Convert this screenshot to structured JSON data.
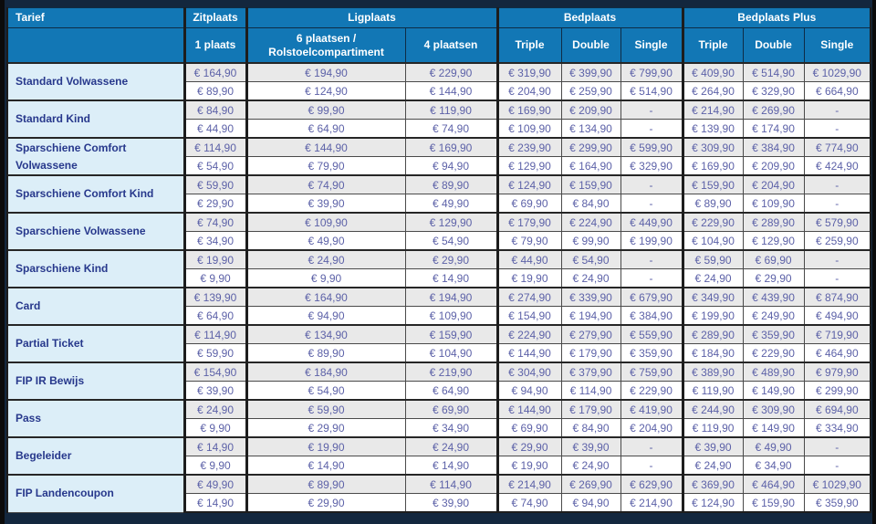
{
  "table": {
    "header": {
      "tarief": "Tarief",
      "groups": [
        {
          "label": "Zitplaats",
          "cols": [
            "1 plaats"
          ]
        },
        {
          "label": "Ligplaats",
          "cols": [
            "6 plaatsen / Rolstoelcompartiment",
            "4 plaatsen"
          ]
        },
        {
          "label": "Bedplaats",
          "cols": [
            "Triple",
            "Double",
            "Single"
          ]
        },
        {
          "label": "Bedplaats Plus",
          "cols": [
            "Triple",
            "Double",
            "Single"
          ]
        }
      ]
    },
    "rows": [
      {
        "tariff": "Standard Volwassene",
        "prices": [
          [
            "€ 164,90",
            "€ 194,90",
            "€ 229,90",
            "€ 319,90",
            "€ 399,90",
            "€ 799,90",
            "€ 409,90",
            "€ 514,90",
            "€ 1029,90"
          ],
          [
            "€ 89,90",
            "€ 124,90",
            "€ 144,90",
            "€ 204,90",
            "€ 259,90",
            "€ 514,90",
            "€ 264,90",
            "€ 329,90",
            "€ 664,90"
          ]
        ]
      },
      {
        "tariff": "Standard Kind",
        "prices": [
          [
            "€ 84,90",
            "€ 99,90",
            "€ 119,90",
            "€ 169,90",
            "€ 209,90",
            "-",
            "€ 214,90",
            "€ 269,90",
            "-"
          ],
          [
            "€ 44,90",
            "€ 64,90",
            "€ 74,90",
            "€ 109,90",
            "€ 134,90",
            "-",
            "€ 139,90",
            "€ 174,90",
            "-"
          ]
        ]
      },
      {
        "tariff": "Sparschiene Comfort Volwassene",
        "prices": [
          [
            "€ 114,90",
            "€ 144,90",
            "€ 169,90",
            "€ 239,90",
            "€ 299,90",
            "€ 599,90",
            "€ 309,90",
            "€ 384,90",
            "€ 774,90"
          ],
          [
            "€ 54,90",
            "€ 79,90",
            "€ 94,90",
            "€ 129,90",
            "€ 164,90",
            "€ 329,90",
            "€ 169,90",
            "€ 209,90",
            "€ 424,90"
          ]
        ]
      },
      {
        "tariff": "Sparschiene Comfort Kind",
        "prices": [
          [
            "€ 59,90",
            "€ 74,90",
            "€ 89,90",
            "€ 124,90",
            "€ 159,90",
            "-",
            "€ 159,90",
            "€ 204,90",
            "-"
          ],
          [
            "€ 29,90",
            "€ 39,90",
            "€ 49,90",
            "€ 69,90",
            "€ 84,90",
            "-",
            "€ 89,90",
            "€ 109,90",
            "-"
          ]
        ]
      },
      {
        "tariff": "Sparschiene Volwassene",
        "prices": [
          [
            "€ 74,90",
            "€ 109,90",
            "€ 129,90",
            "€ 179,90",
            "€ 224,90",
            "€ 449,90",
            "€ 229,90",
            "€ 289,90",
            "€ 579,90"
          ],
          [
            "€ 34,90",
            "€ 49,90",
            "€ 54,90",
            "€ 79,90",
            "€ 99,90",
            "€ 199,90",
            "€ 104,90",
            "€ 129,90",
            "€ 259,90"
          ]
        ]
      },
      {
        "tariff": "Sparschiene Kind",
        "prices": [
          [
            "€ 19,90",
            "€ 24,90",
            "€ 29,90",
            "€ 44,90",
            "€ 54,90",
            "-",
            "€ 59,90",
            "€ 69,90",
            "-"
          ],
          [
            "€ 9,90",
            "€ 9,90",
            "€ 14,90",
            "€ 19,90",
            "€ 24,90",
            "-",
            "€ 24,90",
            "€ 29,90",
            "-"
          ]
        ]
      },
      {
        "tariff": "Card",
        "prices": [
          [
            "€ 139,90",
            "€ 164,90",
            "€ 194,90",
            "€ 274,90",
            "€ 339,90",
            "€ 679,90",
            "€ 349,90",
            "€ 439,90",
            "€ 874,90"
          ],
          [
            "€ 64,90",
            "€ 94,90",
            "€ 109,90",
            "€ 154,90",
            "€ 194,90",
            "€ 384,90",
            "€ 199,90",
            "€ 249,90",
            "€ 494,90"
          ]
        ]
      },
      {
        "tariff": "Partial Ticket",
        "prices": [
          [
            "€ 114,90",
            "€ 134,90",
            "€ 159,90",
            "€ 224,90",
            "€ 279,90",
            "€ 559,90",
            "€ 289,90",
            "€ 359,90",
            "€ 719,90"
          ],
          [
            "€ 59,90",
            "€ 89,90",
            "€ 104,90",
            "€ 144,90",
            "€ 179,90",
            "€ 359,90",
            "€ 184,90",
            "€ 229,90",
            "€ 464,90"
          ]
        ]
      },
      {
        "tariff": "FIP IR Bewijs",
        "prices": [
          [
            "€ 154,90",
            "€ 184,90",
            "€ 219,90",
            "€ 304,90",
            "€ 379,90",
            "€ 759,90",
            "€ 389,90",
            "€ 489,90",
            "€ 979,90"
          ],
          [
            "€ 39,90",
            "€ 54,90",
            "€ 64,90",
            "€ 94,90",
            "€ 114,90",
            "€ 229,90",
            "€ 119,90",
            "€ 149,90",
            "€ 299,90"
          ]
        ]
      },
      {
        "tariff": "Pass",
        "prices": [
          [
            "€ 24,90",
            "€ 59,90",
            "€ 69,90",
            "€ 144,90",
            "€ 179,90",
            "€ 419,90",
            "€ 244,90",
            "€ 309,90",
            "€ 694,90"
          ],
          [
            "€ 9,90",
            "€ 29,90",
            "€ 34,90",
            "€ 69,90",
            "€ 84,90",
            "€ 204,90",
            "€ 119,90",
            "€ 149,90",
            "€ 334,90"
          ]
        ]
      },
      {
        "tariff": "Begeleider",
        "prices": [
          [
            "€ 14,90",
            "€ 19,90",
            "€ 24,90",
            "€ 29,90",
            "€ 39,90",
            "-",
            "€ 39,90",
            "€ 49,90",
            "-"
          ],
          [
            "€ 9,90",
            "€ 14,90",
            "€ 14,90",
            "€ 19,90",
            "€ 24,90",
            "-",
            "€ 24,90",
            "€ 34,90",
            "-"
          ]
        ]
      },
      {
        "tariff": "FIP Landencoupon",
        "prices": [
          [
            "€ 49,90",
            "€ 89,90",
            "€ 114,90",
            "€ 214,90",
            "€ 269,90",
            "€ 629,90",
            "€ 369,90",
            "€ 464,90",
            "€ 1029,90"
          ],
          [
            "€ 14,90",
            "€ 29,90",
            "€ 39,90",
            "€ 74,90",
            "€ 94,90",
            "€ 214,90",
            "€ 124,90",
            "€ 159,90",
            "€ 359,90"
          ]
        ]
      }
    ]
  },
  "colors": {
    "header_bg": "#1277b5",
    "header_text": "#ffffff",
    "tariff_bg": "#dceef8",
    "tariff_text": "#27388c",
    "price_text": "#5d62a8",
    "row_alt_bg": "#e9e9e9",
    "row_bg": "#ffffff",
    "page_bg": "#13273e",
    "frame": "#0b0b0b"
  }
}
